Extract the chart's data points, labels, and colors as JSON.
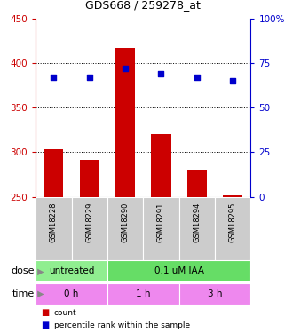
{
  "title": "GDS668 / 259278_at",
  "categories": [
    "GSM18228",
    "GSM18229",
    "GSM18290",
    "GSM18291",
    "GSM18294",
    "GSM18295"
  ],
  "bar_values": [
    303,
    291,
    417,
    320,
    280,
    252
  ],
  "bar_bottom": 250,
  "blue_dot_values": [
    67,
    67,
    72,
    69,
    67,
    65
  ],
  "left_ylim": [
    250,
    450
  ],
  "right_ylim": [
    0,
    100
  ],
  "left_yticks": [
    250,
    300,
    350,
    400,
    450
  ],
  "right_yticks": [
    0,
    25,
    50,
    75,
    100
  ],
  "right_yticklabels": [
    "0",
    "25",
    "50",
    "75",
    "100%"
  ],
  "bar_color": "#cc0000",
  "dot_color": "#0000cc",
  "dose_labels": [
    {
      "text": "untreated",
      "start": 0,
      "end": 2,
      "color": "#90ee90"
    },
    {
      "text": "0.1 uM IAA",
      "start": 2,
      "end": 6,
      "color": "#66dd66"
    }
  ],
  "time_labels": [
    {
      "text": "0 h",
      "start": 0,
      "end": 2,
      "color": "#ee88ee"
    },
    {
      "text": "1 h",
      "start": 2,
      "end": 4,
      "color": "#ee88ee"
    },
    {
      "text": "3 h",
      "start": 4,
      "end": 6,
      "color": "#ee88ee"
    }
  ],
  "dose_row_label": "dose",
  "time_row_label": "time",
  "legend_count_label": "count",
  "legend_pct_label": "percentile rank within the sample",
  "left_axis_color": "#cc0000",
  "right_axis_color": "#0000cc",
  "tick_area_bg": "#cccccc",
  "figsize": [
    3.21,
    3.75
  ],
  "dpi": 100
}
